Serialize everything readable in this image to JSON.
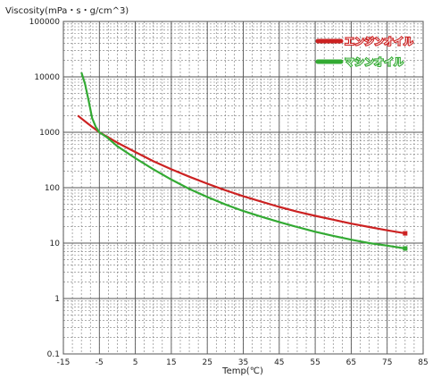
{
  "chart_data": {
    "type": "line",
    "title": "",
    "xlabel": "Temp(℃)",
    "ylabel": "Viscosity(mPa・s・g/cm^3)",
    "x_ticks": [
      -15,
      -5,
      5,
      15,
      25,
      35,
      45,
      55,
      65,
      75,
      85
    ],
    "x_tick_labels": [
      "-15",
      "-5",
      "5",
      "15",
      "25",
      "35",
      "45",
      "55",
      "65",
      "75",
      "85"
    ],
    "y_ticks": [
      0.1,
      1,
      10,
      100,
      1000,
      10000,
      100000
    ],
    "y_tick_labels": [
      "0.1",
      "1",
      "10",
      "100",
      "1000",
      "10000",
      "100000"
    ],
    "xlim": [
      -15,
      85
    ],
    "ylim": [
      0.1,
      100000
    ],
    "y_scale": "log",
    "grid": true,
    "legend_position": "top-right",
    "series": [
      {
        "name": "エンジンオイル",
        "color": "#cc2222",
        "points": [
          [
            -11,
            2000
          ],
          [
            -8,
            1400
          ],
          [
            -5,
            1000
          ],
          [
            0,
            650
          ],
          [
            5,
            440
          ],
          [
            10,
            300
          ],
          [
            15,
            215
          ],
          [
            20,
            158
          ],
          [
            25,
            118
          ],
          [
            30,
            90
          ],
          [
            35,
            70
          ],
          [
            40,
            56
          ],
          [
            45,
            45
          ],
          [
            50,
            37
          ],
          [
            55,
            31
          ],
          [
            60,
            26.5
          ],
          [
            65,
            22.5
          ],
          [
            70,
            19.5
          ],
          [
            75,
            17
          ],
          [
            80,
            15
          ]
        ]
      },
      {
        "name": "マシンオイル",
        "color": "#33aa33",
        "points": [
          [
            -10,
            12000
          ],
          [
            -9,
            7500
          ],
          [
            -8,
            3800
          ],
          [
            -7,
            1800
          ],
          [
            -6,
            1250
          ],
          [
            -5,
            1000
          ],
          [
            -3,
            820
          ],
          [
            0,
            560
          ],
          [
            5,
            340
          ],
          [
            10,
            215
          ],
          [
            15,
            140
          ],
          [
            20,
            95
          ],
          [
            25,
            68
          ],
          [
            30,
            50
          ],
          [
            35,
            38
          ],
          [
            40,
            30
          ],
          [
            45,
            24
          ],
          [
            50,
            19.5
          ],
          [
            55,
            16
          ],
          [
            60,
            13.5
          ],
          [
            65,
            11.5
          ],
          [
            70,
            10
          ],
          [
            75,
            9
          ],
          [
            80,
            8
          ]
        ]
      }
    ]
  }
}
